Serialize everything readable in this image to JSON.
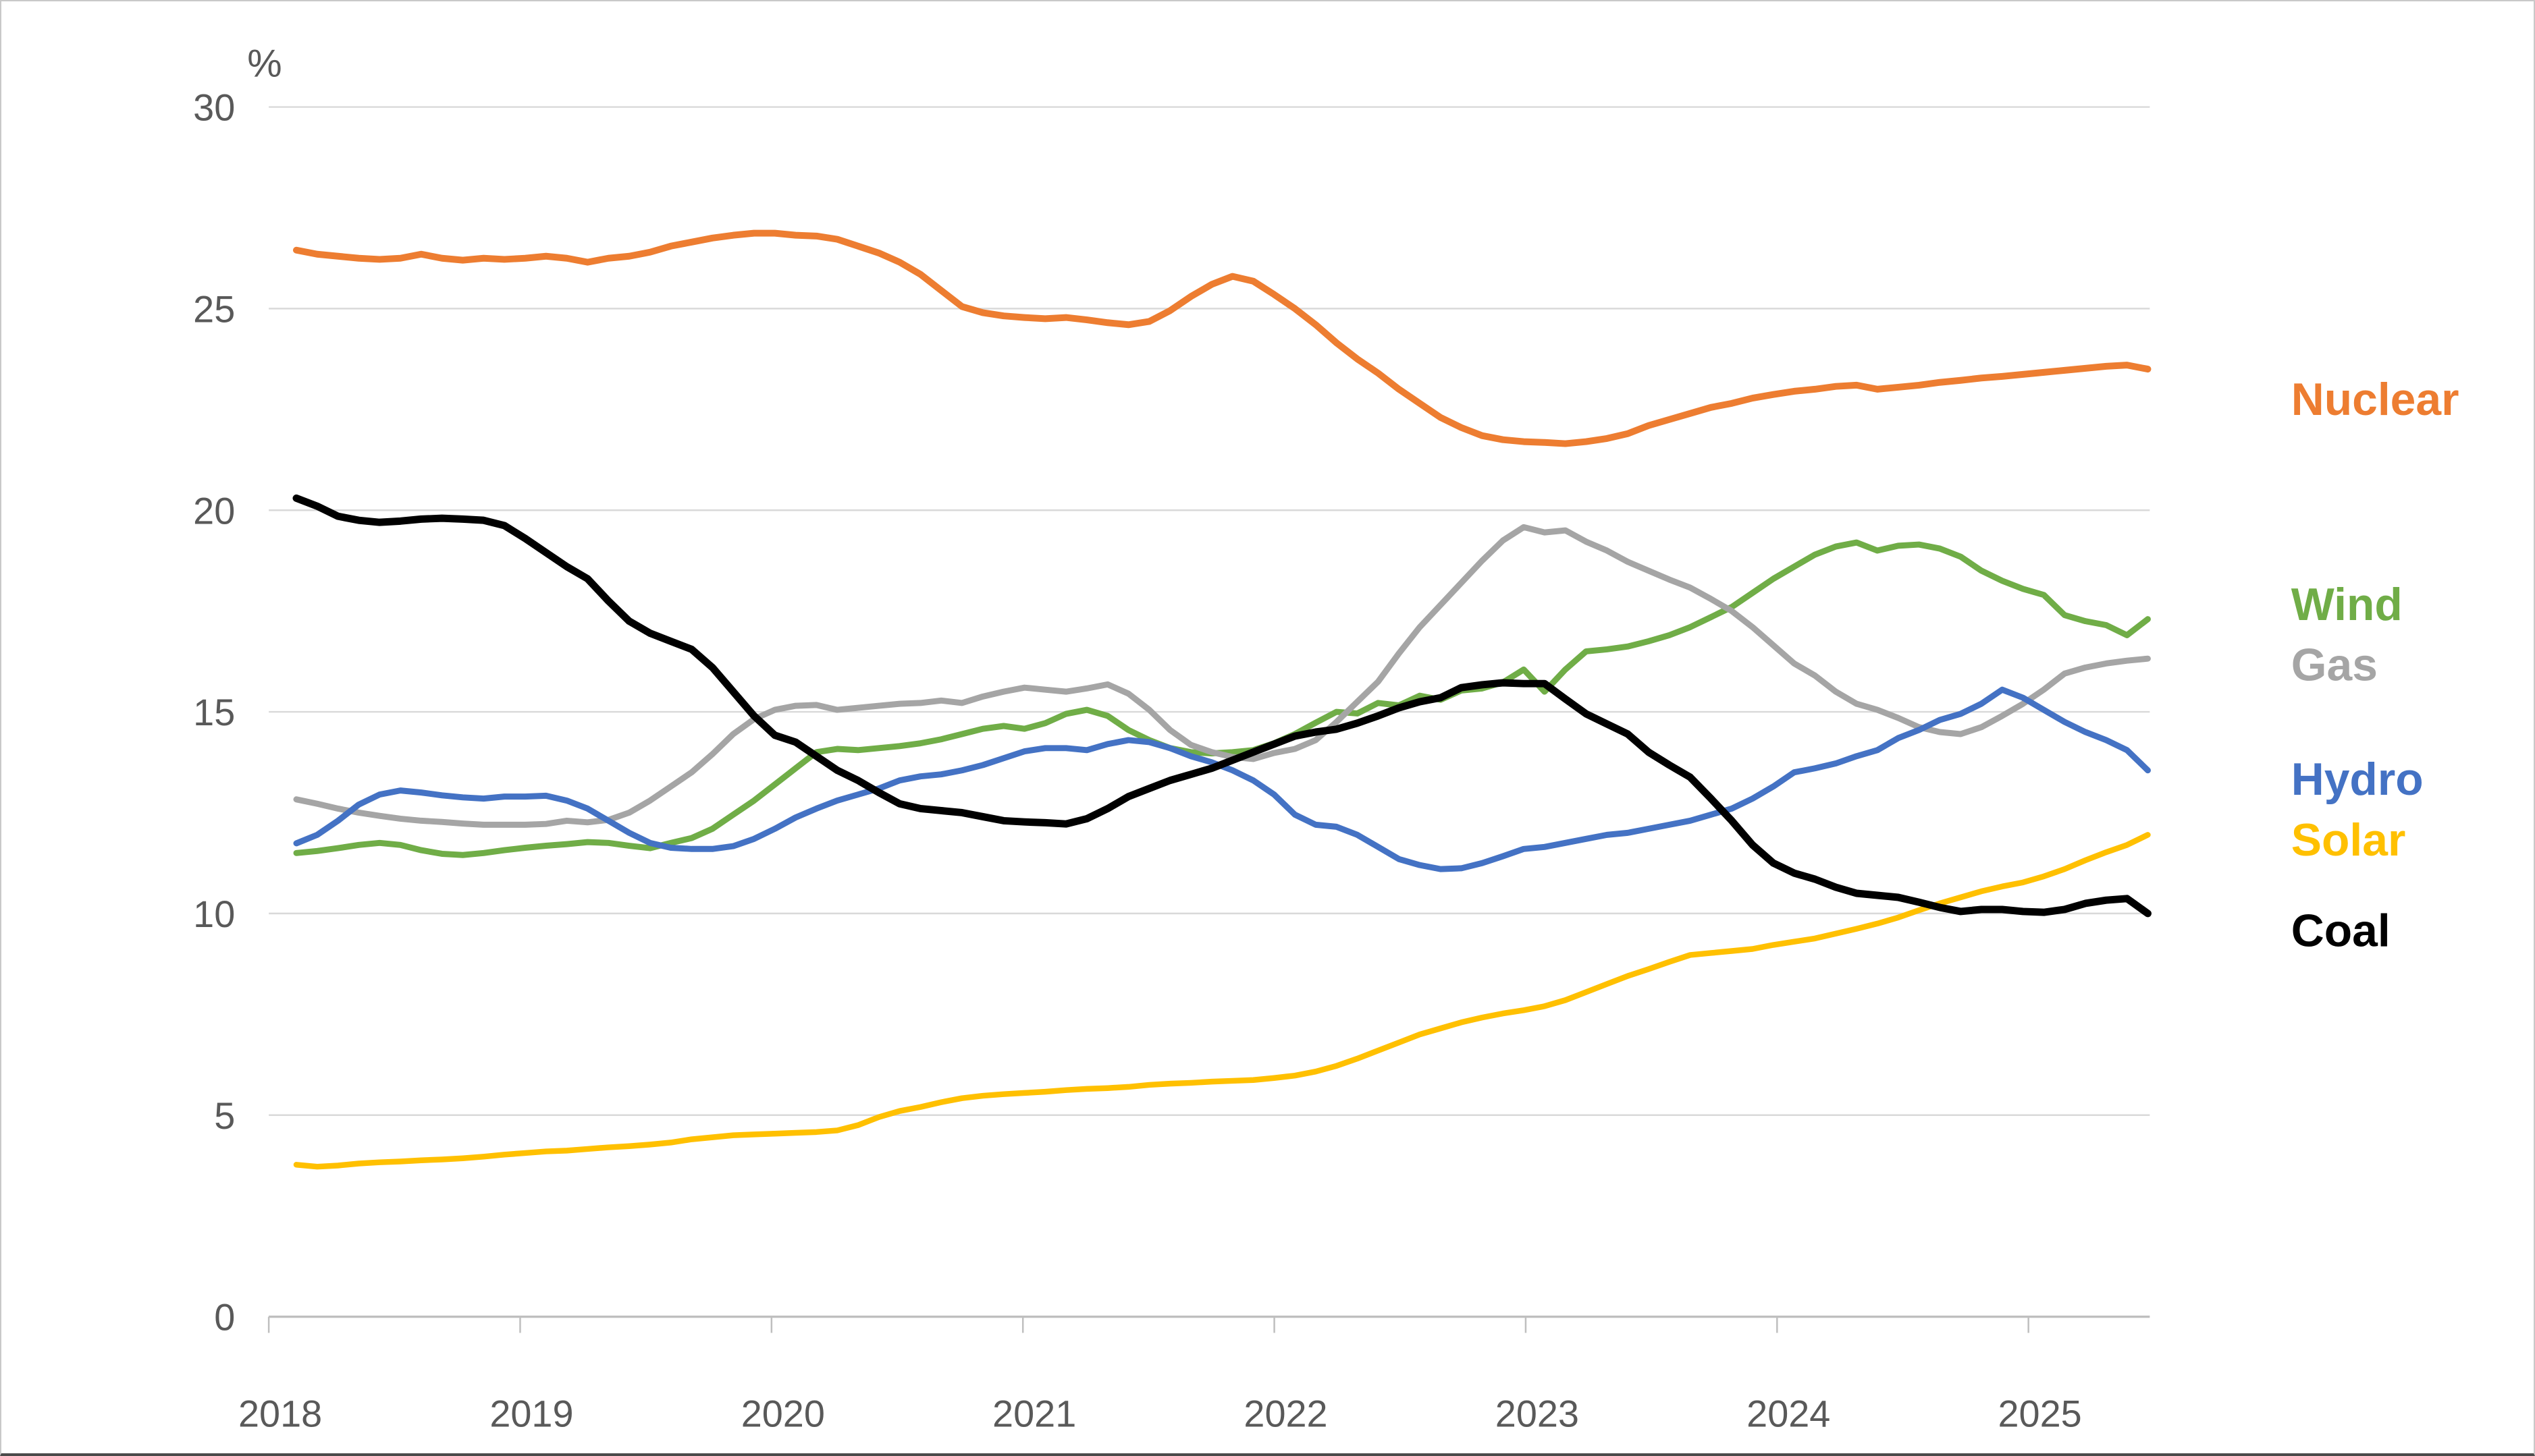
{
  "window": {
    "background": "#ffffff",
    "border_color": "#c9c9c9"
  },
  "chart_data": {
    "type": "line",
    "title": "",
    "ylabel": "%",
    "xlabel": "",
    "x_start": "2018-01",
    "x_end": "2025-06",
    "interval": "monthly",
    "x_tick_labels": [
      "2018",
      "2019",
      "2020",
      "2021",
      "2022",
      "2023",
      "2024",
      "2025"
    ],
    "y_tick_labels": [
      "0",
      "5",
      "10",
      "15",
      "20",
      "25",
      "30"
    ],
    "ylim": [
      0,
      30
    ],
    "grid": "horizontal",
    "gridline_color": "#d9d9d9",
    "axis_color": "#bfbfbf",
    "tick_label_color": "#595959",
    "legend_position": "right",
    "legend_y": [
      590,
      895,
      985,
      1155,
      1245,
      1380
    ],
    "series": [
      {
        "name": "Nuclear",
        "color": "#ED7D31",
        "stroke_width": 10,
        "values": [
          26.45,
          26.35,
          26.3,
          26.25,
          26.22,
          26.25,
          26.35,
          26.25,
          26.2,
          26.25,
          26.22,
          26.25,
          26.3,
          26.25,
          26.15,
          26.25,
          26.3,
          26.4,
          26.55,
          26.65,
          26.75,
          26.82,
          26.87,
          26.87,
          26.82,
          26.8,
          26.72,
          26.55,
          26.38,
          26.15,
          25.85,
          25.45,
          25.05,
          24.9,
          24.82,
          24.78,
          24.75,
          24.78,
          24.72,
          24.65,
          24.6,
          24.68,
          24.95,
          25.3,
          25.6,
          25.8,
          25.68,
          25.35,
          25.0,
          24.6,
          24.15,
          23.75,
          23.4,
          23.0,
          22.65,
          22.3,
          22.05,
          21.85,
          21.75,
          21.7,
          21.68,
          21.65,
          21.7,
          21.78,
          21.9,
          22.1,
          22.25,
          22.4,
          22.55,
          22.65,
          22.78,
          22.87,
          22.95,
          23.0,
          23.07,
          23.1,
          23.0,
          23.05,
          23.1,
          23.17,
          23.22,
          23.28,
          23.32,
          23.37,
          23.42,
          23.47,
          23.52,
          23.57,
          23.6,
          23.5
        ]
      },
      {
        "name": "Wind",
        "color": "#70AD47",
        "stroke_width": 9,
        "values": [
          11.5,
          11.55,
          11.62,
          11.7,
          11.75,
          11.7,
          11.57,
          11.48,
          11.45,
          11.5,
          11.57,
          11.63,
          11.68,
          11.72,
          11.77,
          11.75,
          11.68,
          11.62,
          11.75,
          11.87,
          12.1,
          12.45,
          12.8,
          13.2,
          13.6,
          14.0,
          14.08,
          14.05,
          14.1,
          14.15,
          14.22,
          14.32,
          14.45,
          14.58,
          14.65,
          14.58,
          14.72,
          14.95,
          15.05,
          14.9,
          14.55,
          14.3,
          14.1,
          14.0,
          13.97,
          14.0,
          14.05,
          14.22,
          14.45,
          14.73,
          15.0,
          14.96,
          15.22,
          15.16,
          15.4,
          15.3,
          15.53,
          15.58,
          15.73,
          16.05,
          15.5,
          16.05,
          16.5,
          16.55,
          16.62,
          16.75,
          16.9,
          17.1,
          17.35,
          17.6,
          17.95,
          18.3,
          18.6,
          18.9,
          19.1,
          19.2,
          19.0,
          19.12,
          19.15,
          19.05,
          18.85,
          18.5,
          18.25,
          18.05,
          17.9,
          17.4,
          17.25,
          17.15,
          16.9,
          17.3
        ]
      },
      {
        "name": "Gas",
        "color": "#A5A5A5",
        "stroke_width": 9,
        "values": [
          12.83,
          12.72,
          12.6,
          12.5,
          12.42,
          12.35,
          12.3,
          12.27,
          12.23,
          12.2,
          12.2,
          12.2,
          12.22,
          12.3,
          12.26,
          12.32,
          12.5,
          12.8,
          13.15,
          13.5,
          13.95,
          14.45,
          14.82,
          15.05,
          15.15,
          15.17,
          15.05,
          15.1,
          15.15,
          15.2,
          15.22,
          15.28,
          15.22,
          15.38,
          15.5,
          15.6,
          15.55,
          15.5,
          15.58,
          15.68,
          15.45,
          15.05,
          14.55,
          14.18,
          14.0,
          13.88,
          13.83,
          13.98,
          14.08,
          14.3,
          14.75,
          15.25,
          15.75,
          16.45,
          17.1,
          17.65,
          18.2,
          18.75,
          19.25,
          19.58,
          19.45,
          19.5,
          19.22,
          19.0,
          18.72,
          18.5,
          18.28,
          18.08,
          17.8,
          17.5,
          17.1,
          16.65,
          16.2,
          15.9,
          15.5,
          15.2,
          15.05,
          14.85,
          14.62,
          14.5,
          14.45,
          14.62,
          14.9,
          15.2,
          15.55,
          15.95,
          16.1,
          16.2,
          16.27,
          16.32
        ]
      },
      {
        "name": "Hydro",
        "color": "#4472C4",
        "stroke_width": 9,
        "values": [
          11.74,
          11.95,
          12.3,
          12.7,
          12.95,
          13.05,
          13.0,
          12.93,
          12.88,
          12.85,
          12.9,
          12.9,
          12.92,
          12.8,
          12.6,
          12.3,
          12.0,
          11.75,
          11.63,
          11.6,
          11.6,
          11.67,
          11.85,
          12.1,
          12.38,
          12.6,
          12.8,
          12.95,
          13.1,
          13.3,
          13.4,
          13.45,
          13.55,
          13.68,
          13.85,
          14.02,
          14.1,
          14.1,
          14.05,
          14.2,
          14.3,
          14.25,
          14.1,
          13.9,
          13.75,
          13.55,
          13.3,
          12.95,
          12.45,
          12.2,
          12.15,
          11.95,
          11.65,
          11.35,
          11.2,
          11.1,
          11.12,
          11.25,
          11.42,
          11.6,
          11.65,
          11.75,
          11.85,
          11.95,
          12.0,
          12.1,
          12.2,
          12.3,
          12.45,
          12.6,
          12.85,
          13.15,
          13.5,
          13.6,
          13.72,
          13.9,
          14.05,
          14.35,
          14.55,
          14.8,
          14.95,
          15.2,
          15.55,
          15.35,
          15.05,
          14.75,
          14.5,
          14.3,
          14.05,
          13.55
        ]
      },
      {
        "name": "Solar",
        "color": "#FFC000",
        "stroke_width": 8.5,
        "values": [
          3.77,
          3.72,
          3.75,
          3.8,
          3.83,
          3.85,
          3.88,
          3.9,
          3.93,
          3.97,
          4.02,
          4.06,
          4.1,
          4.12,
          4.16,
          4.2,
          4.23,
          4.27,
          4.32,
          4.4,
          4.45,
          4.5,
          4.52,
          4.54,
          4.56,
          4.58,
          4.62,
          4.75,
          4.95,
          5.1,
          5.2,
          5.32,
          5.42,
          5.48,
          5.52,
          5.55,
          5.58,
          5.62,
          5.65,
          5.67,
          5.7,
          5.75,
          5.78,
          5.8,
          5.83,
          5.85,
          5.87,
          5.92,
          5.98,
          6.08,
          6.22,
          6.4,
          6.6,
          6.8,
          7.0,
          7.15,
          7.3,
          7.42,
          7.52,
          7.6,
          7.7,
          7.85,
          8.05,
          8.25,
          8.45,
          8.62,
          8.8,
          8.97,
          9.02,
          9.07,
          9.12,
          9.22,
          9.3,
          9.38,
          9.5,
          9.62,
          9.75,
          9.9,
          10.08,
          10.25,
          10.4,
          10.55,
          10.67,
          10.77,
          10.92,
          11.1,
          11.32,
          11.52,
          11.7,
          11.95
        ]
      },
      {
        "name": "Coal",
        "color": "#000000",
        "stroke_width": 11,
        "values": [
          20.3,
          20.1,
          19.85,
          19.75,
          19.7,
          19.73,
          19.78,
          19.8,
          19.78,
          19.75,
          19.62,
          19.3,
          18.95,
          18.6,
          18.3,
          17.75,
          17.25,
          16.95,
          16.75,
          16.55,
          16.1,
          15.5,
          14.9,
          14.42,
          14.25,
          13.9,
          13.55,
          13.3,
          13.0,
          12.72,
          12.6,
          12.55,
          12.5,
          12.4,
          12.3,
          12.27,
          12.25,
          12.22,
          12.35,
          12.6,
          12.9,
          13.1,
          13.3,
          13.45,
          13.6,
          13.8,
          14.0,
          14.2,
          14.4,
          14.5,
          14.57,
          14.72,
          14.9,
          15.1,
          15.25,
          15.35,
          15.6,
          15.67,
          15.72,
          15.7,
          15.7,
          15.32,
          14.95,
          14.7,
          14.45,
          14.0,
          13.68,
          13.38,
          12.85,
          12.3,
          11.7,
          11.25,
          11.0,
          10.85,
          10.65,
          10.5,
          10.45,
          10.4,
          10.28,
          10.15,
          10.05,
          10.1,
          10.1,
          10.05,
          10.03,
          10.1,
          10.25,
          10.33,
          10.37,
          10.0
        ]
      }
    ]
  }
}
